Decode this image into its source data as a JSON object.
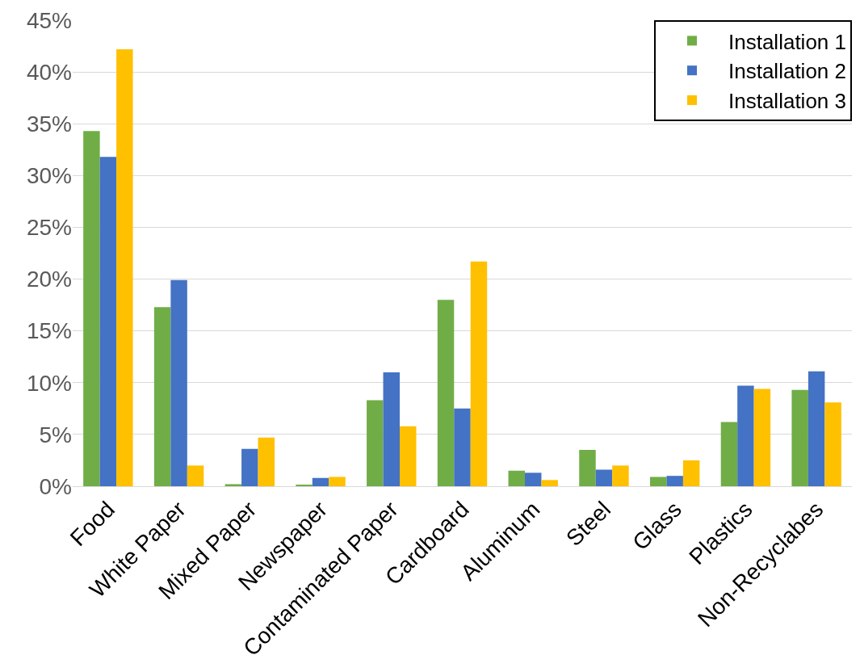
{
  "chart_data": {
    "type": "bar",
    "categories": [
      "Food",
      "White Paper",
      "Mixed Paper",
      "Newspaper",
      "Contaminated Paper",
      "Cardboard",
      "Aluminum",
      "Steel",
      "Glass",
      "Plastics",
      "Non-Recyclabes"
    ],
    "series": [
      {
        "name": "Installation 1",
        "color": "#70ad47",
        "values": [
          34.3,
          17.3,
          0.2,
          0.1,
          8.3,
          18.0,
          1.5,
          3.5,
          0.9,
          6.2,
          9.3
        ]
      },
      {
        "name": "Installation 2",
        "color": "#4472c4",
        "values": [
          31.8,
          19.9,
          3.6,
          0.8,
          11.0,
          7.5,
          1.3,
          1.6,
          1.0,
          9.7,
          11.1
        ]
      },
      {
        "name": "Installation 3",
        "color": "#ffc000",
        "values": [
          42.2,
          2.0,
          4.7,
          0.9,
          5.8,
          21.7,
          0.6,
          2.0,
          2.5,
          9.4,
          8.1
        ]
      }
    ],
    "ylim": [
      0,
      45
    ],
    "yticks": [
      {
        "value": 0,
        "label": "0%"
      },
      {
        "value": 5,
        "label": "5%"
      },
      {
        "value": 10,
        "label": "10%"
      },
      {
        "value": 15,
        "label": "15%"
      },
      {
        "value": 20,
        "label": "20%"
      },
      {
        "value": 25,
        "label": "25%"
      },
      {
        "value": 30,
        "label": "30%"
      },
      {
        "value": 35,
        "label": "35%"
      },
      {
        "value": 40,
        "label": "40%"
      },
      {
        "value": 45,
        "label": "45%"
      }
    ],
    "grid": "y",
    "legend": "top right"
  }
}
